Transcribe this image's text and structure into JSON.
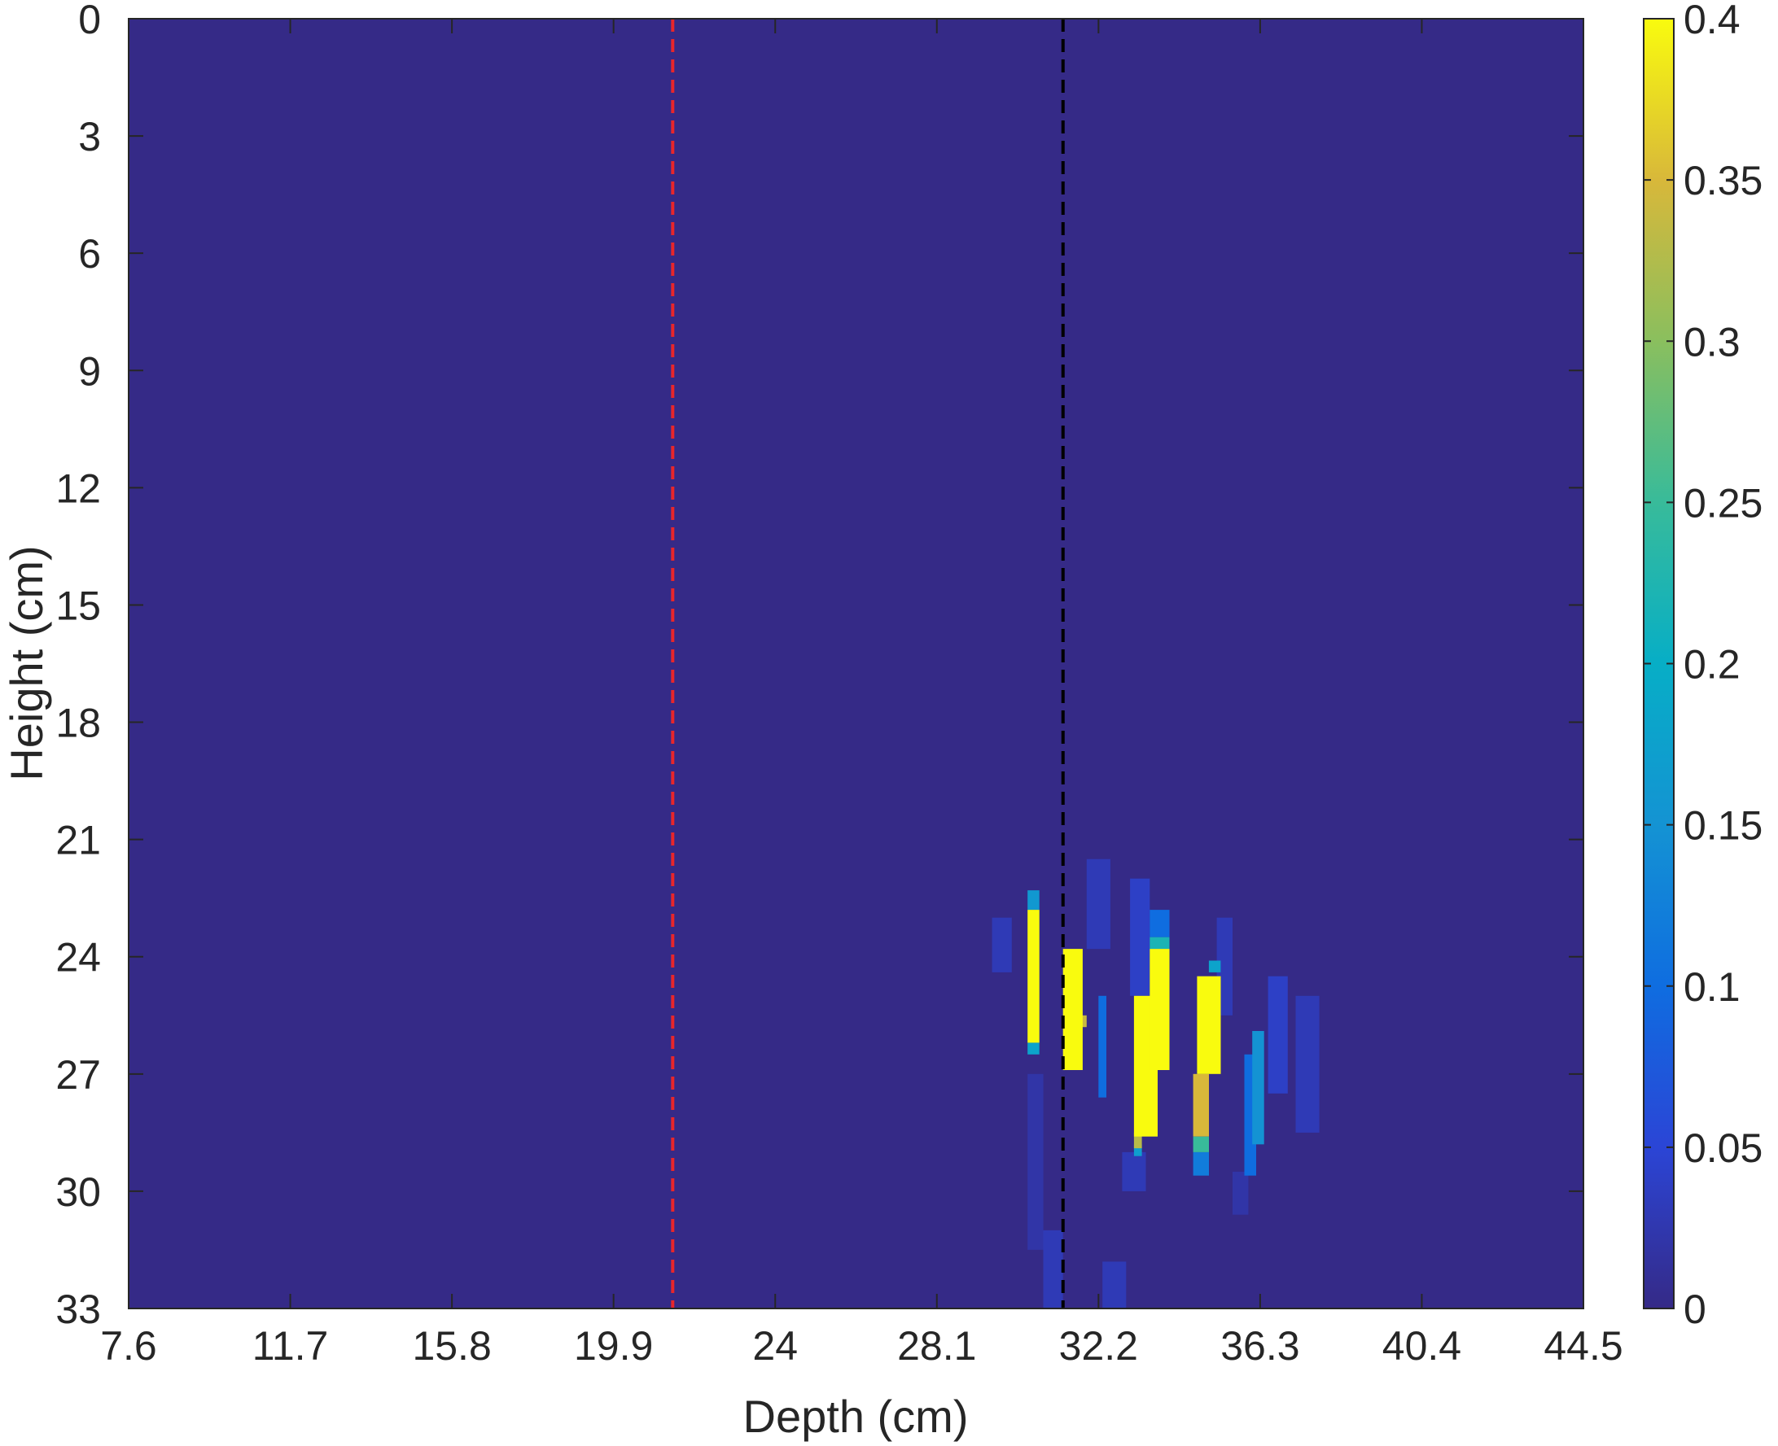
{
  "chart_data": {
    "type": "heatmap",
    "title": "",
    "xlabel": "Depth (cm)",
    "ylabel": "Height (cm)",
    "xlim": [
      7.6,
      44.5
    ],
    "ylim": [
      0,
      33
    ],
    "y_reversed": true,
    "x_ticks": [
      "7.6",
      "11.7",
      "15.8",
      "19.9",
      "24",
      "28.1",
      "32.2",
      "36.3",
      "40.4",
      "44.5"
    ],
    "y_ticks": [
      "0",
      "3",
      "6",
      "9",
      "12",
      "15",
      "18",
      "21",
      "24",
      "27",
      "30",
      "33"
    ],
    "colorbar": {
      "colormap": "parula",
      "limits": [
        0,
        0.4
      ],
      "ticks": [
        "0",
        "0.05",
        "0.1",
        "0.15",
        "0.2",
        "0.25",
        "0.3",
        "0.35",
        "0.4"
      ]
    },
    "background_value": 0,
    "reference_lines": [
      {
        "x": 21.4,
        "color": "#e8262b",
        "style": "dashed"
      },
      {
        "x": 31.3,
        "color": "#000000",
        "style": "dashed"
      }
    ],
    "cells": [
      {
        "x0": 30.4,
        "x1": 30.7,
        "y0": 22.8,
        "y1": 26.2,
        "value": 0.4
      },
      {
        "x0": 30.4,
        "x1": 30.7,
        "y0": 22.3,
        "y1": 22.8,
        "value": 0.16
      },
      {
        "x0": 30.4,
        "x1": 30.7,
        "y0": 26.2,
        "y1": 26.5,
        "value": 0.18
      },
      {
        "x0": 31.3,
        "x1": 31.8,
        "y0": 23.8,
        "y1": 26.9,
        "value": 0.4
      },
      {
        "x0": 31.6,
        "x1": 31.9,
        "y0": 25.5,
        "y1": 25.8,
        "value": 0.34
      },
      {
        "x0": 32.2,
        "x1": 32.4,
        "y0": 25.0,
        "y1": 27.6,
        "value": 0.1
      },
      {
        "x0": 33.1,
        "x1": 33.7,
        "y0": 25.0,
        "y1": 28.6,
        "value": 0.4
      },
      {
        "x0": 33.1,
        "x1": 33.3,
        "y0": 28.5,
        "y1": 28.9,
        "value": 0.33
      },
      {
        "x0": 33.1,
        "x1": 33.3,
        "y0": 28.8,
        "y1": 29.1,
        "value": 0.17
      },
      {
        "x0": 33.5,
        "x1": 34.0,
        "y0": 23.8,
        "y1": 26.9,
        "value": 0.4
      },
      {
        "x0": 33.5,
        "x1": 34.0,
        "y0": 23.5,
        "y1": 23.8,
        "value": 0.22
      },
      {
        "x0": 33.5,
        "x1": 34.0,
        "y0": 22.8,
        "y1": 23.5,
        "value": 0.1
      },
      {
        "x0": 33.6,
        "x1": 33.7,
        "y0": 26.9,
        "y1": 28.5,
        "value": 0.4
      },
      {
        "x0": 34.7,
        "x1": 35.3,
        "y0": 24.5,
        "y1": 27.0,
        "value": 0.4
      },
      {
        "x0": 34.6,
        "x1": 35.0,
        "y0": 27.0,
        "y1": 28.6,
        "value": 0.35
      },
      {
        "x0": 34.6,
        "x1": 35.0,
        "y0": 28.6,
        "y1": 29.0,
        "value": 0.25
      },
      {
        "x0": 34.6,
        "x1": 35.0,
        "y0": 29.0,
        "y1": 29.6,
        "value": 0.12
      },
      {
        "x0": 35.0,
        "x1": 35.3,
        "y0": 24.1,
        "y1": 24.4,
        "value": 0.18
      },
      {
        "x0": 35.9,
        "x1": 36.2,
        "y0": 26.5,
        "y1": 29.6,
        "value": 0.1
      },
      {
        "x0": 36.1,
        "x1": 36.4,
        "y0": 25.9,
        "y1": 28.8,
        "value": 0.15
      },
      {
        "x0": 29.5,
        "x1": 30.0,
        "y0": 23.0,
        "y1": 24.4,
        "value": 0.03
      },
      {
        "x0": 31.9,
        "x1": 32.5,
        "y0": 21.5,
        "y1": 23.8,
        "value": 0.03
      },
      {
        "x0": 33.0,
        "x1": 33.5,
        "y0": 22.0,
        "y1": 25.0,
        "value": 0.04
      },
      {
        "x0": 35.2,
        "x1": 35.6,
        "y0": 23.0,
        "y1": 25.5,
        "value": 0.03
      },
      {
        "x0": 36.5,
        "x1": 37.0,
        "y0": 24.5,
        "y1": 27.5,
        "value": 0.04
      },
      {
        "x0": 37.2,
        "x1": 37.8,
        "y0": 25.0,
        "y1": 28.5,
        "value": 0.03
      },
      {
        "x0": 32.8,
        "x1": 33.4,
        "y0": 29.0,
        "y1": 30.0,
        "value": 0.03
      },
      {
        "x0": 30.4,
        "x1": 30.8,
        "y0": 27.0,
        "y1": 31.5,
        "value": 0.02
      },
      {
        "x0": 30.8,
        "x1": 31.3,
        "y0": 31.0,
        "y1": 33.0,
        "value": 0.03
      },
      {
        "x0": 32.3,
        "x1": 32.9,
        "y0": 31.8,
        "y1": 33.0,
        "value": 0.03
      },
      {
        "x0": 35.6,
        "x1": 36.0,
        "y0": 29.5,
        "y1": 30.6,
        "value": 0.02
      }
    ]
  }
}
